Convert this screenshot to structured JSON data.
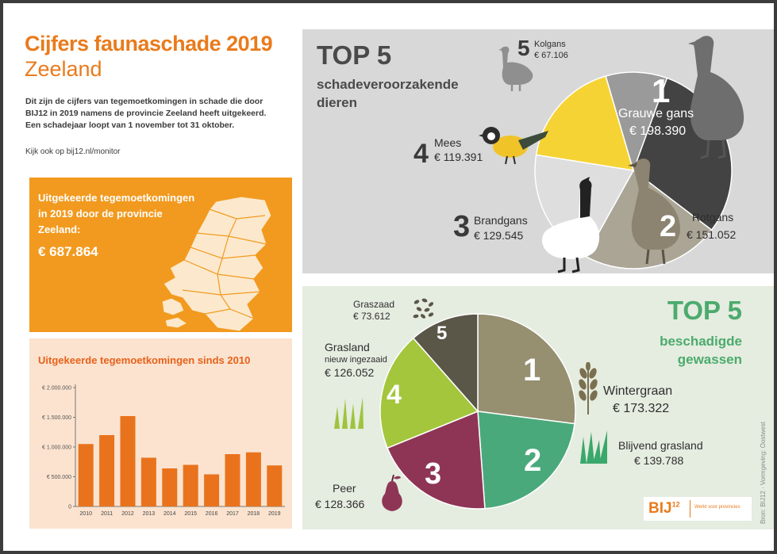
{
  "header": {
    "title_line1": "Cijfers faunaschade 2019",
    "title_line2": "Zeeland",
    "intro_lines": [
      "Dit zijn de cijfers van tegemoetkomingen in schade die door",
      "BIJ12 in 2019 namens de provincie Zeeland heeft uitgekeerd.",
      "Een schadejaar loopt van 1 november tot 31 oktober."
    ],
    "see_also": "Kijk ook op bij12.nl/monitor"
  },
  "payout_box": {
    "title_lines": [
      "Uitgekeerde tegemoetkomingen",
      "in 2019 door de provincie",
      "Zeeland:"
    ],
    "amount": "€ 687.864"
  },
  "chart_data": {
    "type": "bar",
    "title": "Uitgekeerde tegemoetkomingen sinds 2010",
    "categories": [
      "2010",
      "2011",
      "2012",
      "2013",
      "2014",
      "2015",
      "2016",
      "2017",
      "2018",
      "2019"
    ],
    "values": [
      1050000,
      1200000,
      1520000,
      820000,
      640000,
      700000,
      540000,
      880000,
      910000,
      690000
    ],
    "ylim": [
      0,
      2000000
    ],
    "yticks": [
      0,
      500000,
      1000000,
      1500000,
      2000000
    ],
    "ytick_labels": [
      "0",
      "€ 500.000",
      "€ 1.000.000",
      "€ 1.500.000",
      "€ 2.000.000"
    ],
    "bar_color": "#e9731d"
  },
  "animals": {
    "title": "TOP 5",
    "subtitle_lines": [
      "schadeveroorzakende",
      "dieren"
    ],
    "items": [
      {
        "rank": "1",
        "name": "Grauwe gans",
        "amount": "€ 198.390",
        "value": 198390,
        "color": "#434343"
      },
      {
        "rank": "2",
        "name": "Rotgans",
        "amount": "€ 151.052",
        "value": 151052,
        "color": "#aba596"
      },
      {
        "rank": "3",
        "name": "Brandgans",
        "amount": "€ 129.545",
        "value": 129545,
        "color": "#dedede"
      },
      {
        "rank": "4",
        "name": "Mees",
        "amount": "€ 119.391",
        "value": 119391,
        "color": "#f6d334"
      },
      {
        "rank": "5",
        "name": "Kolgans",
        "amount": "€ 67.106",
        "value": 67106,
        "color": "#9a9a9a"
      }
    ]
  },
  "crops": {
    "title": "TOP 5",
    "subtitle_lines": [
      "beschadigde",
      "gewassen"
    ],
    "items": [
      {
        "rank": "1",
        "name": "Wintergraan",
        "amount": "€ 173.322",
        "value": 173322,
        "color": "#968f70"
      },
      {
        "rank": "2",
        "name": "Blijvend grasland",
        "amount": "€ 139.788",
        "value": 139788,
        "color": "#4aa97b"
      },
      {
        "rank": "3",
        "name": "Peer",
        "amount": "€ 128.366",
        "value": 128366,
        "color": "#8e3556"
      },
      {
        "rank": "4",
        "name": "Grasland",
        "sub": "nieuw ingezaaid",
        "amount": "€ 126.052",
        "value": 126052,
        "color": "#a4c63c"
      },
      {
        "rank": "5",
        "name": "Graszaad",
        "amount": "€ 73.612",
        "value": 73612,
        "color": "#5a5648"
      }
    ]
  },
  "footer": {
    "logo_text": "BIJ",
    "logo_sup": "12",
    "logo_tagline": "Werkt voor provincies",
    "credit": "Bron: BIJ12 · Vormgeving: Oostwest"
  }
}
